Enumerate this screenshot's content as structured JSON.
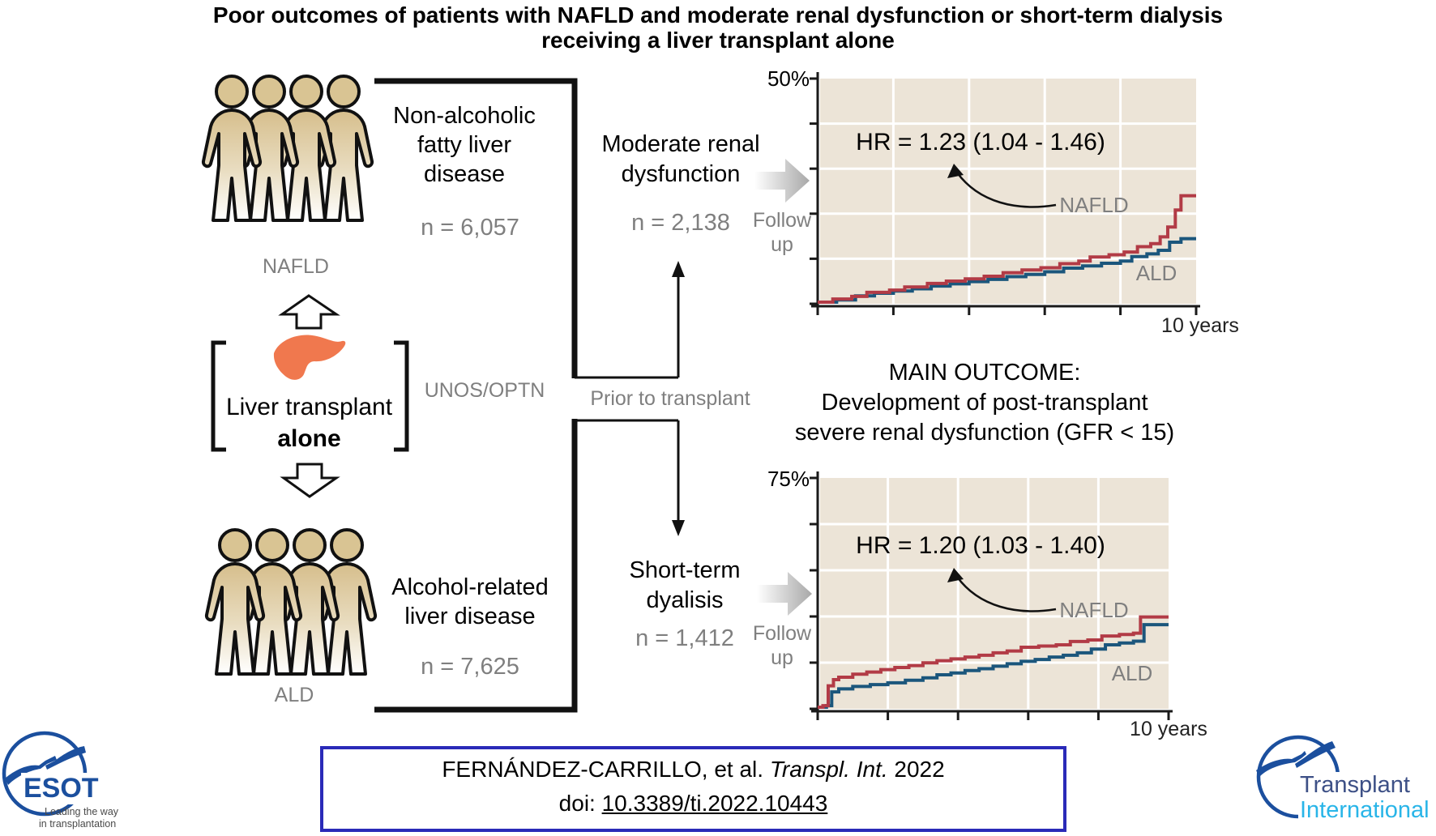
{
  "title": {
    "line1": "Poor outcomes of patients with NAFLD and moderate renal dysfunction or short-term dialysis",
    "line2": "receiving a liver transplant alone"
  },
  "cohort": {
    "nafld": {
      "disease": "Non-alcoholic fatty liver disease",
      "n": "n = 6,057",
      "tag": "NAFLD"
    },
    "ald": {
      "disease": "Alcohol-related liver disease",
      "n": "n = 7,625",
      "tag": "ALD"
    },
    "intervention_line1": "Liver transplant",
    "intervention_line2": "alone",
    "source": "UNOS/OPTN"
  },
  "pathway": {
    "moderate_label": "Moderate renal dysfunction",
    "moderate_n": "n = 2,138",
    "dialysis_label": "Short-term dyalisis",
    "dialysis_n": "n = 1,412",
    "prior": "Prior to transplant",
    "follow_line1": "Follow",
    "follow_line2": "up"
  },
  "main_outcome": {
    "line1": "MAIN OUTCOME:",
    "line2": "Development of post-transplant",
    "line3": "severe renal dysfunction (GFR < 15)"
  },
  "chart_data": [
    {
      "type": "line",
      "hr_label": "HR = 1.23 (1.04 - 1.46)",
      "ylabel_top": "50%",
      "xlabel": "10 years",
      "xlim": [
        0,
        10
      ],
      "ylim": [
        0,
        50
      ],
      "grid": true,
      "series": [
        {
          "name": "NAFLD",
          "color": "#b23b46",
          "points": [
            [
              0,
              0
            ],
            [
              0.4,
              0.7
            ],
            [
              0.9,
              1.3
            ],
            [
              1.3,
              2.2
            ],
            [
              1.9,
              2.7
            ],
            [
              2.3,
              3.4
            ],
            [
              2.9,
              4.2
            ],
            [
              3.4,
              4.7
            ],
            [
              3.9,
              5.2
            ],
            [
              4.4,
              5.8
            ],
            [
              4.9,
              6.6
            ],
            [
              5.4,
              7.2
            ],
            [
              5.9,
              7.7
            ],
            [
              6.4,
              8.6
            ],
            [
              6.9,
              9.2
            ],
            [
              7.2,
              10.1
            ],
            [
              7.7,
              10.6
            ],
            [
              8.1,
              11.2
            ],
            [
              8.45,
              12.4
            ],
            [
              8.8,
              13.1
            ],
            [
              9.05,
              14.6
            ],
            [
              9.25,
              16.8
            ],
            [
              9.45,
              20.6
            ],
            [
              9.6,
              23.8
            ],
            [
              10,
              23.8
            ]
          ]
        },
        {
          "name": "ALD",
          "color": "#1b567c",
          "points": [
            [
              0,
              0
            ],
            [
              0.5,
              0.5
            ],
            [
              1.0,
              1.4
            ],
            [
              1.5,
              2.0
            ],
            [
              2.0,
              2.5
            ],
            [
              2.5,
              3.0
            ],
            [
              3.0,
              3.6
            ],
            [
              3.5,
              4.1
            ],
            [
              4.0,
              4.6
            ],
            [
              4.5,
              5.1
            ],
            [
              5.0,
              5.7
            ],
            [
              5.5,
              6.2
            ],
            [
              6.0,
              6.8
            ],
            [
              6.5,
              7.6
            ],
            [
              7.0,
              8.1
            ],
            [
              7.5,
              8.7
            ],
            [
              8.0,
              9.2
            ],
            [
              8.3,
              10.2
            ],
            [
              8.7,
              10.8
            ],
            [
              9.0,
              11.6
            ],
            [
              9.3,
              13.4
            ],
            [
              9.6,
              14.2
            ],
            [
              10,
              14.2
            ]
          ]
        }
      ]
    },
    {
      "type": "line",
      "hr_label": "HR = 1.20 (1.03 - 1.40)",
      "ylabel_top": "75%",
      "xlabel": "10 years",
      "xlim": [
        0,
        10
      ],
      "ylim": [
        0,
        75
      ],
      "grid": true,
      "series": [
        {
          "name": "NAFLD",
          "color": "#b23b46",
          "points": [
            [
              0,
              0
            ],
            [
              0.15,
              0.5
            ],
            [
              0.3,
              7
            ],
            [
              0.45,
              9
            ],
            [
              0.6,
              9.8
            ],
            [
              1.0,
              10.8
            ],
            [
              1.4,
              11.5
            ],
            [
              1.8,
              12.3
            ],
            [
              2.2,
              13
            ],
            [
              2.6,
              13.6
            ],
            [
              3.0,
              14.5
            ],
            [
              3.4,
              15.2
            ],
            [
              3.8,
              15.8
            ],
            [
              4.2,
              16.4
            ],
            [
              4.6,
              17
            ],
            [
              5.0,
              17.8
            ],
            [
              5.4,
              18.4
            ],
            [
              5.8,
              19.6
            ],
            [
              6.3,
              20
            ],
            [
              6.8,
              20.4
            ],
            [
              7.2,
              21.5
            ],
            [
              7.7,
              22
            ],
            [
              8.1,
              23.3
            ],
            [
              8.6,
              23.8
            ],
            [
              9.0,
              24.2
            ],
            [
              9.2,
              29.5
            ],
            [
              10,
              29.5
            ]
          ]
        },
        {
          "name": "ALD",
          "color": "#1b567c",
          "points": [
            [
              0,
              0
            ],
            [
              0.25,
              0.5
            ],
            [
              0.4,
              5
            ],
            [
              0.6,
              6
            ],
            [
              1.0,
              6.8
            ],
            [
              1.5,
              7.4
            ],
            [
              2.0,
              8
            ],
            [
              2.5,
              8.8
            ],
            [
              3.0,
              9.6
            ],
            [
              3.4,
              10.6
            ],
            [
              3.8,
              11.2
            ],
            [
              4.2,
              12
            ],
            [
              4.6,
              12.6
            ],
            [
              5.0,
              13.4
            ],
            [
              5.4,
              14.2
            ],
            [
              5.8,
              15
            ],
            [
              6.2,
              15.6
            ],
            [
              6.6,
              16.4
            ],
            [
              7.0,
              17
            ],
            [
              7.4,
              17.8
            ],
            [
              7.8,
              19
            ],
            [
              8.2,
              20.4
            ],
            [
              8.6,
              21
            ],
            [
              9.0,
              21.6
            ],
            [
              9.3,
              27
            ],
            [
              10,
              27
            ]
          ]
        }
      ]
    }
  ],
  "citation": {
    "pre": "FERNÁNDEZ-CARRILLO, et al. ",
    "journal": "Transpl. Int.",
    "year": " 2022",
    "doi_prefix": "doi: ",
    "doi": "10.3389/ti.2022.10443"
  },
  "logos": {
    "esot": {
      "name": "ESOT",
      "tagline1": "Leading the way",
      "tagline2": "in transplantation"
    },
    "ti": {
      "line1": "Transplant",
      "line2": "International"
    }
  },
  "colors": {
    "nafld_curve": "#b23b46",
    "ald_curve": "#1b567c",
    "plot_bg": "#ece4d7",
    "citation_border": "#2a2ab8",
    "esot_blue": "#1b4f9e",
    "ti_dark": "#3d5086",
    "ti_cyan": "#29b5e8",
    "liver_orange": "#f0784e"
  }
}
